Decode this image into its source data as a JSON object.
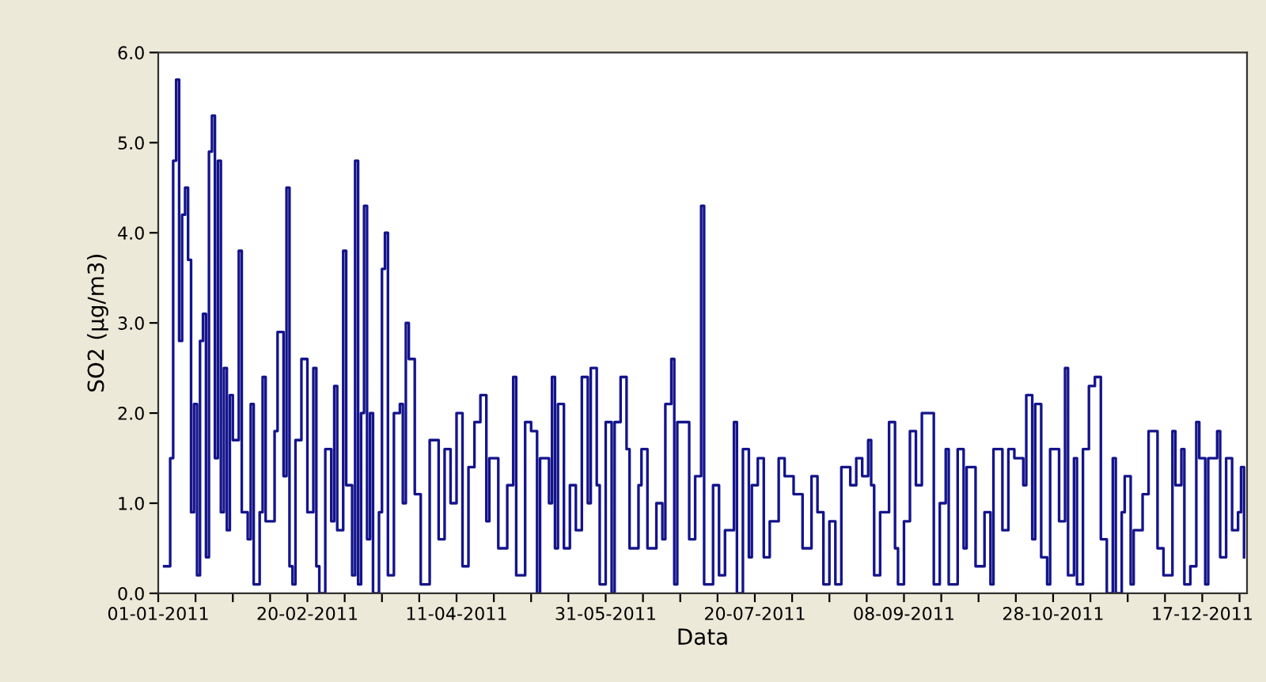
{
  "chart_data": {
    "type": "step",
    "xlabel": "Data",
    "ylabel": "SO2 (µg/m3)",
    "xlim": [
      "2011-01-01",
      "2012-01-01"
    ],
    "ylim": [
      0,
      6
    ],
    "xticks": [
      {
        "value": "2011-01-01",
        "label": "01-01-2011"
      },
      {
        "value": "2011-01-13T12:00",
        "label": null
      },
      {
        "value": "2011-01-26",
        "label": null
      },
      {
        "value": "2011-02-07T12:00",
        "label": null
      },
      {
        "value": "2011-02-20",
        "label": "20-02-2011"
      },
      {
        "value": "2011-03-04T12:00",
        "label": null
      },
      {
        "value": "2011-03-17",
        "label": null
      },
      {
        "value": "2011-03-29T12:00",
        "label": null
      },
      {
        "value": "2011-04-11",
        "label": "11-04-2011"
      },
      {
        "value": "2011-04-23T12:00",
        "label": null
      },
      {
        "value": "2011-05-06",
        "label": null
      },
      {
        "value": "2011-05-18T12:00",
        "label": null
      },
      {
        "value": "2011-05-31",
        "label": "31-05-2011"
      },
      {
        "value": "2011-06-12T12:00",
        "label": null
      },
      {
        "value": "2011-06-25",
        "label": null
      },
      {
        "value": "2011-07-07T12:00",
        "label": null
      },
      {
        "value": "2011-07-20",
        "label": "20-07-2011"
      },
      {
        "value": "2011-08-01T12:00",
        "label": null
      },
      {
        "value": "2011-08-14",
        "label": null
      },
      {
        "value": "2011-08-26T12:00",
        "label": null
      },
      {
        "value": "2011-09-08",
        "label": "08-09-2011"
      },
      {
        "value": "2011-09-20T12:00",
        "label": null
      },
      {
        "value": "2011-10-03",
        "label": null
      },
      {
        "value": "2011-10-15T12:00",
        "label": null
      },
      {
        "value": "2011-10-28",
        "label": "28-10-2011"
      },
      {
        "value": "2011-11-09T12:00",
        "label": null
      },
      {
        "value": "2011-11-22",
        "label": null
      },
      {
        "value": "2011-12-04T12:00",
        "label": null
      },
      {
        "value": "2011-12-17",
        "label": "17-12-2011"
      },
      {
        "value": "2011-12-29T12:00",
        "label": null
      }
    ],
    "yticks": [
      {
        "value": 0,
        "label": "0.0"
      },
      {
        "value": 1,
        "label": "1.0"
      },
      {
        "value": 2,
        "label": "2.0"
      },
      {
        "value": 3,
        "label": "3.0"
      },
      {
        "value": 4,
        "label": "4.0"
      },
      {
        "value": 5,
        "label": "5.0"
      },
      {
        "value": 6,
        "label": "6.0"
      }
    ],
    "grid": false,
    "legend": false,
    "series": [
      {
        "color": "#14148c",
        "x": [
          "2011-01-03",
          "2011-01-05",
          "2011-01-06",
          "2011-01-07",
          "2011-01-08",
          "2011-01-09",
          "2011-01-10",
          "2011-01-11",
          "2011-01-12",
          "2011-01-13",
          "2011-01-14",
          "2011-01-15",
          "2011-01-16",
          "2011-01-17",
          "2011-01-18",
          "2011-01-19",
          "2011-01-20",
          "2011-01-21",
          "2011-01-22",
          "2011-01-23",
          "2011-01-24",
          "2011-01-25",
          "2011-01-26",
          "2011-01-28",
          "2011-01-29",
          "2011-01-31",
          "2011-02-01",
          "2011-02-02",
          "2011-02-04",
          "2011-02-05",
          "2011-02-06",
          "2011-02-09",
          "2011-02-10",
          "2011-02-12",
          "2011-02-13",
          "2011-02-14",
          "2011-02-15",
          "2011-02-16",
          "2011-02-18",
          "2011-02-20",
          "2011-02-22",
          "2011-02-23",
          "2011-02-24",
          "2011-02-26",
          "2011-02-28",
          "2011-03-01",
          "2011-03-02",
          "2011-03-04",
          "2011-03-05",
          "2011-03-07",
          "2011-03-08",
          "2011-03-09",
          "2011-03-10",
          "2011-03-11",
          "2011-03-12",
          "2011-03-13",
          "2011-03-14",
          "2011-03-16",
          "2011-03-17",
          "2011-03-18",
          "2011-03-19",
          "2011-03-21",
          "2011-03-23",
          "2011-03-24",
          "2011-03-25",
          "2011-03-26",
          "2011-03-28",
          "2011-03-30",
          "2011-04-02",
          "2011-04-05",
          "2011-04-07",
          "2011-04-09",
          "2011-04-11",
          "2011-04-13",
          "2011-04-15",
          "2011-04-17",
          "2011-04-19",
          "2011-04-21",
          "2011-04-22",
          "2011-04-25",
          "2011-04-28",
          "2011-04-30",
          "2011-05-01",
          "2011-05-04",
          "2011-05-06",
          "2011-05-08",
          "2011-05-09",
          "2011-05-12",
          "2011-05-13",
          "2011-05-14",
          "2011-05-15",
          "2011-05-17",
          "2011-05-19",
          "2011-05-21",
          "2011-05-23",
          "2011-05-25",
          "2011-05-26",
          "2011-05-28",
          "2011-05-29",
          "2011-05-31",
          "2011-06-02",
          "2011-06-03",
          "2011-06-05",
          "2011-06-07",
          "2011-06-08",
          "2011-06-11",
          "2011-06-12",
          "2011-06-14",
          "2011-06-17",
          "2011-06-19",
          "2011-06-20",
          "2011-06-22",
          "2011-06-23",
          "2011-06-24",
          "2011-06-27",
          "2011-06-28",
          "2011-06-30",
          "2011-07-02",
          "2011-07-03",
          "2011-07-06",
          "2011-07-08",
          "2011-07-10",
          "2011-07-13",
          "2011-07-14",
          "2011-07-16",
          "2011-07-18",
          "2011-07-19",
          "2011-07-21",
          "2011-07-23",
          "2011-07-25",
          "2011-07-28",
          "2011-07-30",
          "2011-08-02",
          "2011-08-05",
          "2011-08-08",
          "2011-08-10",
          "2011-08-12",
          "2011-08-14",
          "2011-08-16",
          "2011-08-18",
          "2011-08-21",
          "2011-08-23",
          "2011-08-25",
          "2011-08-27",
          "2011-08-28",
          "2011-08-29",
          "2011-08-31",
          "2011-09-03",
          "2011-09-05",
          "2011-09-06",
          "2011-09-08",
          "2011-09-10",
          "2011-09-12",
          "2011-09-14",
          "2011-09-16",
          "2011-09-18",
          "2011-09-20",
          "2011-09-22",
          "2011-09-23",
          "2011-09-26",
          "2011-09-28",
          "2011-09-29",
          "2011-10-02",
          "2011-10-05",
          "2011-10-07",
          "2011-10-08",
          "2011-10-11",
          "2011-10-13",
          "2011-10-15",
          "2011-10-18",
          "2011-10-19",
          "2011-10-21",
          "2011-10-22",
          "2011-10-24",
          "2011-10-26",
          "2011-10-27",
          "2011-10-30",
          "2011-11-01",
          "2011-11-02",
          "2011-11-04",
          "2011-11-05",
          "2011-11-07",
          "2011-11-09",
          "2011-11-11",
          "2011-11-13",
          "2011-11-15",
          "2011-11-17",
          "2011-11-18",
          "2011-11-20",
          "2011-11-21",
          "2011-11-23",
          "2011-11-24",
          "2011-11-27",
          "2011-11-29",
          "2011-12-02",
          "2011-12-04",
          "2011-12-07",
          "2011-12-08",
          "2011-12-10",
          "2011-12-11",
          "2011-12-13",
          "2011-12-15",
          "2011-12-16",
          "2011-12-18",
          "2011-12-19",
          "2011-12-22",
          "2011-12-23",
          "2011-12-25",
          "2011-12-27",
          "2011-12-29",
          "2011-12-30",
          "2011-12-31"
        ],
        "values": [
          0.3,
          1.5,
          4.8,
          5.7,
          2.8,
          4.2,
          4.5,
          3.7,
          0.9,
          2.1,
          0.2,
          2.8,
          3.1,
          0.4,
          4.9,
          5.3,
          1.5,
          4.8,
          0.9,
          2.5,
          0.7,
          2.2,
          1.7,
          3.8,
          0.9,
          0.6,
          2.1,
          0.1,
          0.9,
          2.4,
          0.8,
          1.8,
          2.9,
          1.3,
          4.5,
          0.3,
          0.1,
          1.7,
          2.6,
          0.9,
          2.5,
          0.3,
          0.0,
          1.6,
          0.8,
          2.3,
          0.7,
          3.8,
          1.2,
          0.2,
          4.8,
          0.1,
          2.0,
          4.3,
          0.6,
          2.0,
          0.0,
          0.9,
          3.6,
          4.0,
          0.2,
          2.0,
          2.1,
          1.0,
          3.0,
          2.6,
          1.1,
          0.1,
          1.7,
          0.6,
          1.6,
          1.0,
          2.0,
          0.3,
          1.4,
          1.9,
          2.2,
          0.8,
          1.5,
          0.5,
          1.2,
          2.4,
          0.2,
          1.9,
          1.8,
          0.0,
          1.5,
          1.0,
          2.4,
          0.5,
          2.1,
          0.5,
          1.2,
          0.7,
          2.4,
          1.0,
          2.5,
          1.2,
          0.1,
          1.9,
          0.0,
          1.9,
          2.4,
          1.6,
          0.5,
          1.2,
          1.6,
          0.5,
          1.0,
          0.6,
          2.1,
          2.6,
          0.1,
          1.9,
          1.9,
          0.6,
          1.3,
          4.3,
          0.1,
          1.2,
          0.2,
          0.7,
          1.9,
          0.0,
          1.6,
          0.4,
          1.2,
          1.5,
          0.4,
          0.8,
          1.5,
          1.3,
          1.1,
          0.5,
          1.3,
          0.9,
          0.1,
          0.8,
          0.1,
          1.4,
          1.2,
          1.5,
          1.3,
          1.7,
          1.2,
          0.2,
          0.9,
          1.9,
          0.5,
          0.1,
          0.8,
          1.8,
          1.2,
          2.0,
          2.0,
          0.1,
          1.0,
          1.6,
          0.1,
          1.6,
          0.5,
          1.4,
          0.3,
          0.9,
          0.1,
          1.6,
          0.7,
          1.6,
          1.5,
          1.2,
          2.2,
          0.6,
          2.1,
          0.4,
          0.1,
          1.6,
          0.8,
          2.5,
          0.2,
          1.5,
          0.1,
          1.6,
          2.3,
          2.4,
          0.6,
          0.0,
          1.5,
          0.0,
          0.9,
          1.3,
          0.1,
          0.7,
          1.1,
          1.8,
          0.5,
          0.2,
          1.8,
          1.2,
          1.6,
          0.1,
          0.3,
          1.9,
          1.5,
          0.1,
          1.5,
          1.8,
          0.4,
          1.5,
          0.7,
          0.9,
          1.4,
          0.4
        ]
      }
    ]
  }
}
